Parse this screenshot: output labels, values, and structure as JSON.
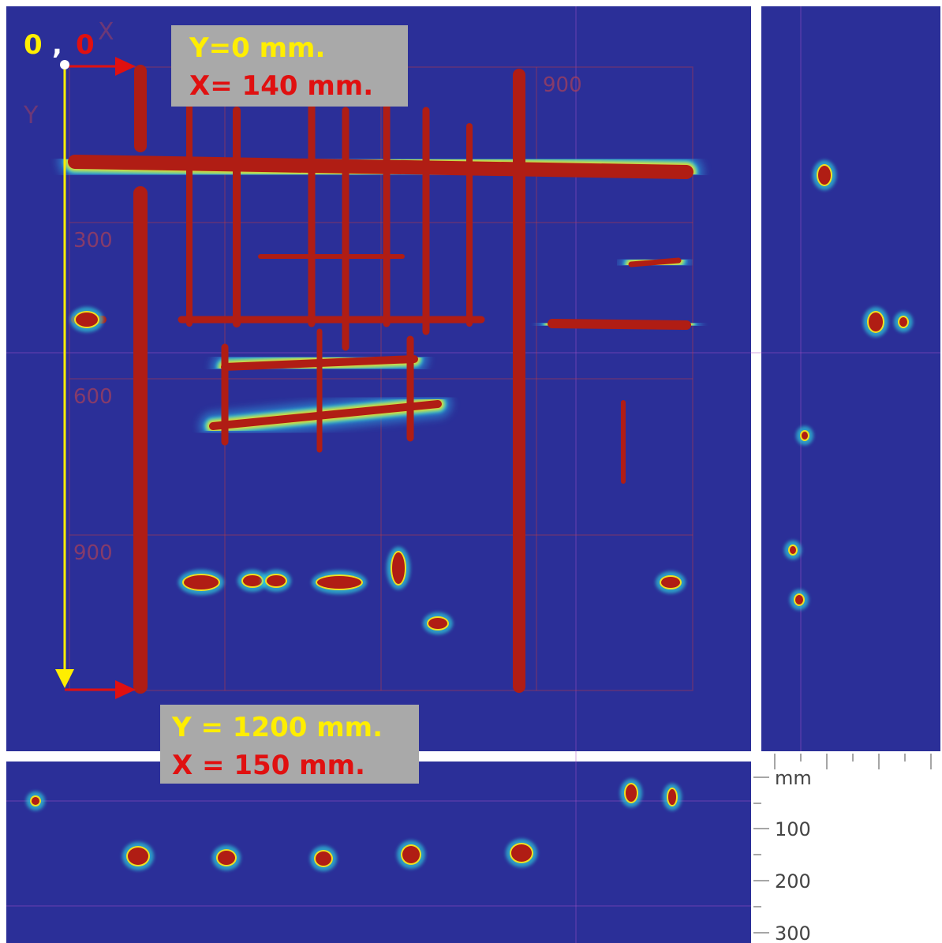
{
  "origin": {
    "y": "0",
    "separator": ",",
    "x": "0"
  },
  "axis_hints": {
    "x": "X",
    "y": "Y"
  },
  "top_label": {
    "y": "Y=0 mm.",
    "x": "X= 140 mm."
  },
  "bottom_label": {
    "y": "Y = 1200 mm.",
    "x": "X = 150 mm."
  },
  "grid_labels": {
    "left": [
      "300",
      "600",
      "900"
    ],
    "top": [
      "900"
    ]
  },
  "depth_scale": {
    "unit": "mm",
    "ticks": [
      "100",
      "200",
      "300"
    ]
  }
}
